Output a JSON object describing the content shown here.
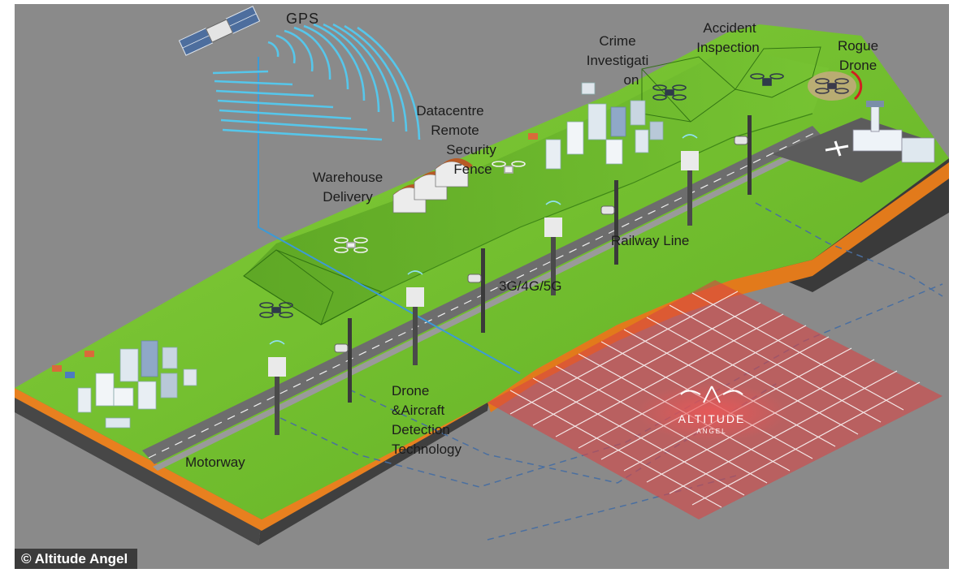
{
  "labels": {
    "gps": "GPS",
    "crime": [
      "Crime",
      "Investigati",
      "on"
    ],
    "accident": [
      "Accident",
      "Inspection"
    ],
    "rogue": [
      "Rogue",
      "Drone"
    ],
    "datacentre": [
      "Datacentre",
      "Remote",
      "Security",
      "Fence"
    ],
    "warehouse": [
      "Warehouse",
      "Delivery"
    ],
    "railway": "Railway Line",
    "network": "3G/4G/5G",
    "detection": [
      "Drone",
      "&Aircraft",
      "Detection",
      "Technology"
    ],
    "motorway": "Motorway"
  },
  "logo": {
    "name": "ALTITUDE",
    "sub": "ANGEL"
  },
  "copyright": "© Altitude Angel",
  "colors": {
    "background": "#8a8a8a",
    "grass": "#6fbf2c",
    "grass_dark": "#4f9a1e",
    "soil": "#e77f1f",
    "rock": "#4a4a4a",
    "road": "#6d6d6d",
    "grid": "#d94545",
    "signal": "#4fc3e6"
  },
  "icons": [
    "satellite-icon",
    "drone-icon",
    "camera-tower-icon",
    "cell-tower-icon",
    "warehouse-icon",
    "city-icon",
    "airport-icon",
    "logo-wings-icon"
  ]
}
